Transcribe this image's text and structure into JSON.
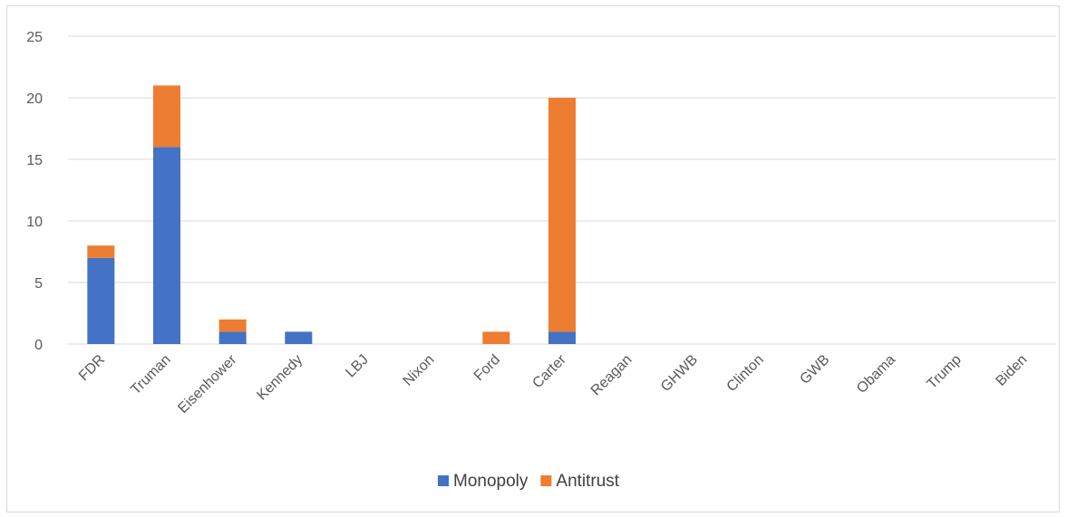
{
  "chart_data": {
    "type": "bar",
    "stacked": true,
    "categories": [
      "FDR",
      "Truman",
      "Eisenhower",
      "Kennedy",
      "LBJ",
      "Nixon",
      "Ford",
      "Carter",
      "Reagan",
      "GHWB",
      "Clinton",
      "GWB",
      "Obama",
      "Trump",
      "Biden"
    ],
    "series": [
      {
        "name": "Monopoly",
        "color": "#4472c4",
        "values": [
          7,
          16,
          1,
          1,
          0,
          0,
          0,
          1,
          0,
          0,
          0,
          0,
          0,
          0,
          0
        ]
      },
      {
        "name": "Antitrust",
        "color": "#ed7d31",
        "values": [
          1,
          5,
          1,
          0,
          0,
          0,
          1,
          19,
          0,
          0,
          0,
          0,
          0,
          0,
          0
        ]
      }
    ],
    "title": "",
    "xlabel": "",
    "ylabel": "",
    "ylim": [
      0,
      25
    ],
    "yticks": [
      0,
      5,
      10,
      15,
      20,
      25
    ],
    "grid": true,
    "legend_position": "bottom",
    "gridline_color": "#d9d9d9",
    "tick_label_color": "#595959"
  }
}
